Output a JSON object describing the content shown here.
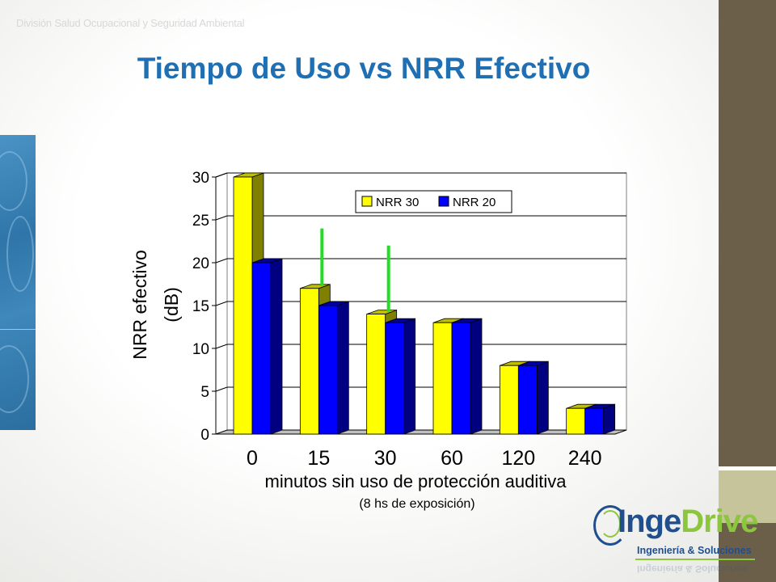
{
  "slide": {
    "header_note": "División Salud Ocupacional y Seguridad Ambiental",
    "title": "Tiempo de Uso vs NRR Efectivo"
  },
  "logo": {
    "brand_part1": "Inge",
    "brand_part2": "Drive",
    "tagline": "Ingeniería & Soluciones"
  },
  "colors": {
    "title": "#1f6fb2",
    "nrr30": "#ffff00",
    "nrr20": "#0000ff",
    "marker": "#22dd22",
    "right_bar": "#6b5f4a"
  },
  "chart_data": {
    "type": "bar",
    "categories": [
      "0",
      "15",
      "30",
      "60",
      "120",
      "240"
    ],
    "series": [
      {
        "name": "NRR 30",
        "values": [
          30,
          17,
          14,
          13,
          8,
          3
        ]
      },
      {
        "name": "NRR 20",
        "values": [
          20,
          15,
          13,
          13,
          8,
          3
        ]
      }
    ],
    "ylim": [
      0,
      30
    ],
    "yticks": [
      0,
      5,
      10,
      15,
      20,
      25,
      30
    ],
    "xlabel": "minutos sin uso de protección auditiva",
    "xlabel_note": "(8 hs de exposición)",
    "ylabel": "NRR efectivo",
    "ylabel_unit": "(dB)",
    "grid": true,
    "legend_position": "top-right",
    "style": "3d",
    "markers": [
      {
        "category": "15",
        "from": 17,
        "to": 24
      },
      {
        "category": "30",
        "from": 14,
        "to": 22
      }
    ]
  }
}
